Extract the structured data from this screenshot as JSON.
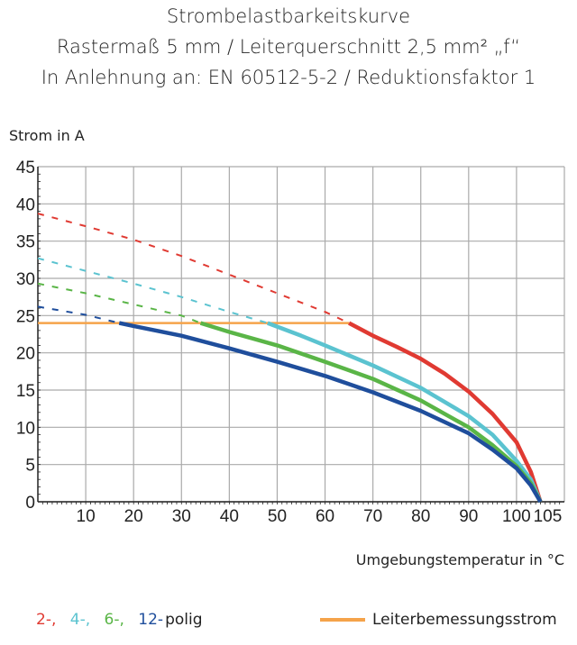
{
  "chart_data": {
    "type": "line",
    "title": "Strombelastbarkeitskurve",
    "subtitle": [
      "Rastermaß 5 mm / Leiterquerschnitt 2,5 mm² „f“",
      "In Anlehnung an: EN 60512-5-2 / Reduktionsfaktor 1"
    ],
    "xlabel": "Umgebungstemperatur in °C",
    "ylabel": "Strom in A",
    "xlim": [
      0,
      110
    ],
    "ylim": [
      0,
      45
    ],
    "xticks": [
      10,
      20,
      30,
      40,
      50,
      60,
      70,
      80,
      90,
      100,
      105
    ],
    "yticks": [
      0,
      5,
      10,
      15,
      20,
      25,
      30,
      35,
      40,
      45
    ],
    "grid": true,
    "legend_placement": "bottom",
    "series": [
      {
        "name": "2-,",
        "color": "#e03a32",
        "dashed": [
          [
            0,
            38.7
          ],
          [
            10,
            37
          ],
          [
            20,
            35.2
          ],
          [
            30,
            33
          ],
          [
            40,
            30.5
          ],
          [
            50,
            28
          ],
          [
            60,
            25.5
          ],
          [
            65,
            24
          ]
        ],
        "solid": [
          [
            65,
            24
          ],
          [
            70,
            22.3
          ],
          [
            75,
            20.8
          ],
          [
            80,
            19.2
          ],
          [
            85,
            17.2
          ],
          [
            90,
            14.8
          ],
          [
            95,
            11.8
          ],
          [
            100,
            8
          ],
          [
            103,
            4
          ],
          [
            105,
            0
          ]
        ]
      },
      {
        "name": "4-,",
        "color": "#5bc3d0",
        "dashed": [
          [
            0,
            32.7
          ],
          [
            10,
            31
          ],
          [
            20,
            29.3
          ],
          [
            30,
            27.5
          ],
          [
            40,
            25.5
          ],
          [
            48,
            24
          ]
        ],
        "solid": [
          [
            48,
            24
          ],
          [
            55,
            22.3
          ],
          [
            60,
            21
          ],
          [
            70,
            18.3
          ],
          [
            80,
            15.3
          ],
          [
            90,
            11.5
          ],
          [
            95,
            9
          ],
          [
            100,
            5.5
          ],
          [
            103,
            3
          ],
          [
            105,
            0
          ]
        ]
      },
      {
        "name": "6-,",
        "color": "#5ab547",
        "dashed": [
          [
            0,
            29.3
          ],
          [
            10,
            28
          ],
          [
            20,
            26.5
          ],
          [
            30,
            25
          ],
          [
            34,
            24
          ]
        ],
        "solid": [
          [
            34,
            24
          ],
          [
            40,
            22.8
          ],
          [
            50,
            21
          ],
          [
            60,
            18.8
          ],
          [
            70,
            16.5
          ],
          [
            80,
            13.6
          ],
          [
            90,
            10
          ],
          [
            95,
            7.6
          ],
          [
            100,
            4.8
          ],
          [
            103,
            2.5
          ],
          [
            105,
            0
          ]
        ]
      },
      {
        "name": "12-",
        "color": "#1f4e9c",
        "dashed": [
          [
            0,
            26.2
          ],
          [
            10,
            25.1
          ],
          [
            17,
            24
          ]
        ],
        "solid": [
          [
            17,
            24
          ],
          [
            20,
            23.6
          ],
          [
            30,
            22.3
          ],
          [
            40,
            20.6
          ],
          [
            50,
            18.8
          ],
          [
            60,
            16.9
          ],
          [
            70,
            14.7
          ],
          [
            80,
            12.2
          ],
          [
            90,
            9.2
          ],
          [
            95,
            7
          ],
          [
            100,
            4.5
          ],
          [
            103,
            2.2
          ],
          [
            105,
            0
          ]
        ]
      }
    ],
    "legend_suffix": "polig",
    "reference_line": {
      "name": "Leiterbemessungsstrom",
      "color": "#f5a34a",
      "y": 24,
      "x_range": [
        0,
        65
      ]
    }
  }
}
